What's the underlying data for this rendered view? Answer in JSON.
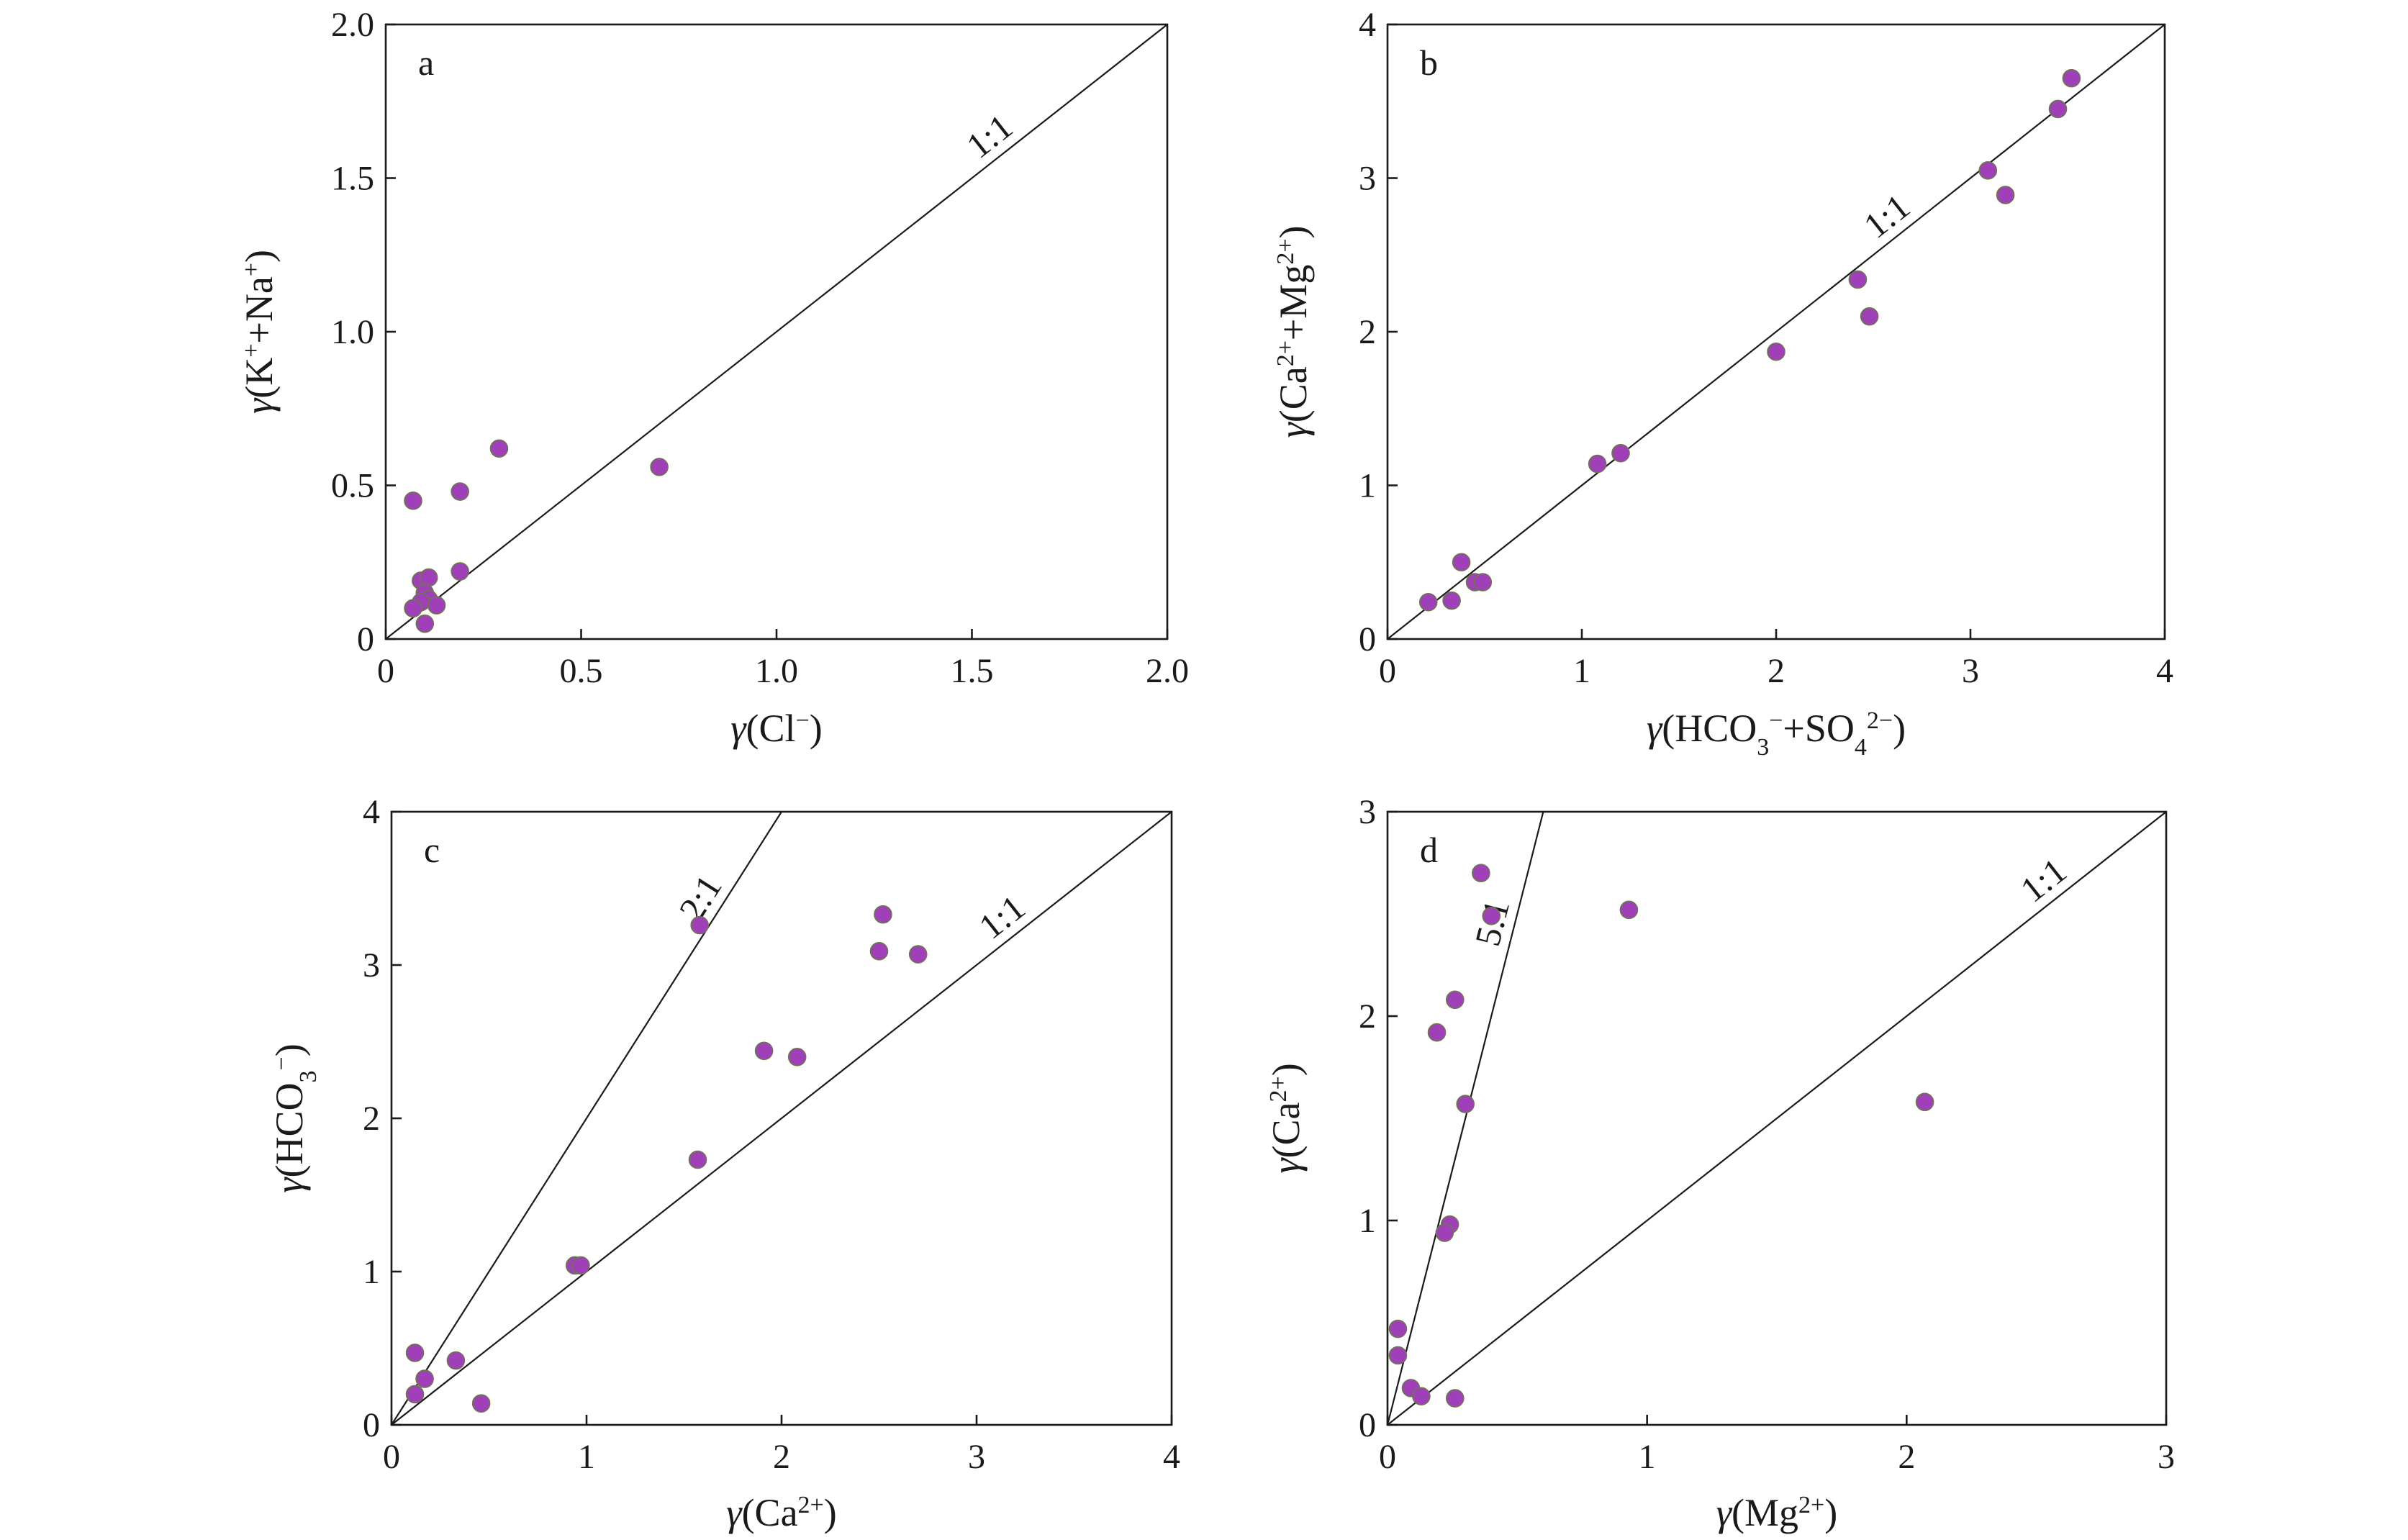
{
  "chart_data": [
    {
      "type": "scatter",
      "panel": "a",
      "xlabel": "γ(Cl⁻)",
      "ylabel": "γ(K⁺+Na⁺)",
      "xlim": [
        0,
        2.0
      ],
      "ylim": [
        0,
        2.0
      ],
      "xticks": [
        "0",
        "0.5",
        "1.0",
        "1.5",
        "2.0"
      ],
      "yticks": [
        "0",
        "0.5",
        "1.0",
        "1.5",
        "2.0"
      ],
      "lines": [
        {
          "label": "1:1",
          "slope": 1
        }
      ],
      "points": [
        {
          "x": 0.07,
          "y": 0.45
        },
        {
          "x": 0.19,
          "y": 0.48
        },
        {
          "x": 0.29,
          "y": 0.62
        },
        {
          "x": 0.7,
          "y": 0.56
        },
        {
          "x": 0.19,
          "y": 0.22
        },
        {
          "x": 0.09,
          "y": 0.19
        },
        {
          "x": 0.11,
          "y": 0.2
        },
        {
          "x": 0.1,
          "y": 0.15
        },
        {
          "x": 0.11,
          "y": 0.13
        },
        {
          "x": 0.09,
          "y": 0.12
        },
        {
          "x": 0.13,
          "y": 0.11
        },
        {
          "x": 0.07,
          "y": 0.1
        },
        {
          "x": 0.1,
          "y": 0.05
        }
      ]
    },
    {
      "type": "scatter",
      "panel": "b",
      "xlabel": "γ(HCO₃⁻+SO₄²⁻)",
      "ylabel": "γ(Ca²⁺+Mg²⁺)",
      "xlim": [
        0,
        4
      ],
      "ylim": [
        0,
        4
      ],
      "xticks": [
        "0",
        "1",
        "2",
        "3",
        "4"
      ],
      "yticks": [
        "0",
        "1",
        "2",
        "3",
        "4"
      ],
      "lines": [
        {
          "label": "1:1",
          "slope": 1
        }
      ],
      "points": [
        {
          "x": 3.52,
          "y": 3.65
        },
        {
          "x": 3.45,
          "y": 3.45
        },
        {
          "x": 3.09,
          "y": 3.05
        },
        {
          "x": 3.18,
          "y": 2.89
        },
        {
          "x": 2.42,
          "y": 2.34
        },
        {
          "x": 2.48,
          "y": 2.1
        },
        {
          "x": 2.0,
          "y": 1.87
        },
        {
          "x": 1.2,
          "y": 1.21
        },
        {
          "x": 1.08,
          "y": 1.14
        },
        {
          "x": 0.38,
          "y": 0.5
        },
        {
          "x": 0.45,
          "y": 0.37
        },
        {
          "x": 0.49,
          "y": 0.37
        },
        {
          "x": 0.33,
          "y": 0.25
        },
        {
          "x": 0.21,
          "y": 0.24
        }
      ]
    },
    {
      "type": "scatter",
      "panel": "c",
      "xlabel": "γ(Ca²⁺)",
      "ylabel": "γ(HCO₃⁻)",
      "xlim": [
        0,
        4
      ],
      "ylim": [
        0,
        4
      ],
      "xticks": [
        "0",
        "1",
        "2",
        "3",
        "4"
      ],
      "yticks": [
        "0",
        "1",
        "2",
        "3",
        "4"
      ],
      "lines": [
        {
          "label": "2:1",
          "slope": 2
        },
        {
          "label": "1:1",
          "slope": 1
        }
      ],
      "points": [
        {
          "x": 1.58,
          "y": 3.26
        },
        {
          "x": 2.52,
          "y": 3.33
        },
        {
          "x": 2.5,
          "y": 3.09
        },
        {
          "x": 2.7,
          "y": 3.07
        },
        {
          "x": 1.91,
          "y": 2.44
        },
        {
          "x": 2.08,
          "y": 2.4
        },
        {
          "x": 1.57,
          "y": 1.73
        },
        {
          "x": 0.94,
          "y": 1.04
        },
        {
          "x": 0.97,
          "y": 1.04
        },
        {
          "x": 0.12,
          "y": 0.47
        },
        {
          "x": 0.33,
          "y": 0.42
        },
        {
          "x": 0.17,
          "y": 0.3
        },
        {
          "x": 0.12,
          "y": 0.2
        },
        {
          "x": 0.46,
          "y": 0.14
        }
      ]
    },
    {
      "type": "scatter",
      "panel": "d",
      "xlabel": "γ(Mg²⁺)",
      "ylabel": "γ(Ca²⁺)",
      "xlim": [
        0,
        3
      ],
      "ylim": [
        0,
        3
      ],
      "xticks": [
        "0",
        "1",
        "2",
        "3"
      ],
      "yticks": [
        "0",
        "1",
        "2",
        "3"
      ],
      "lines": [
        {
          "label": "5:1",
          "slope": 5
        },
        {
          "label": "1:1",
          "slope": 1
        }
      ],
      "points": [
        {
          "x": 0.36,
          "y": 2.7
        },
        {
          "x": 0.4,
          "y": 2.49
        },
        {
          "x": 0.93,
          "y": 2.52
        },
        {
          "x": 0.26,
          "y": 2.08
        },
        {
          "x": 0.19,
          "y": 1.92
        },
        {
          "x": 0.3,
          "y": 1.57
        },
        {
          "x": 2.07,
          "y": 1.58
        },
        {
          "x": 0.24,
          "y": 0.98
        },
        {
          "x": 0.22,
          "y": 0.94
        },
        {
          "x": 0.04,
          "y": 0.47
        },
        {
          "x": 0.04,
          "y": 0.34
        },
        {
          "x": 0.09,
          "y": 0.18
        },
        {
          "x": 0.13,
          "y": 0.14
        },
        {
          "x": 0.26,
          "y": 0.13
        }
      ]
    }
  ]
}
